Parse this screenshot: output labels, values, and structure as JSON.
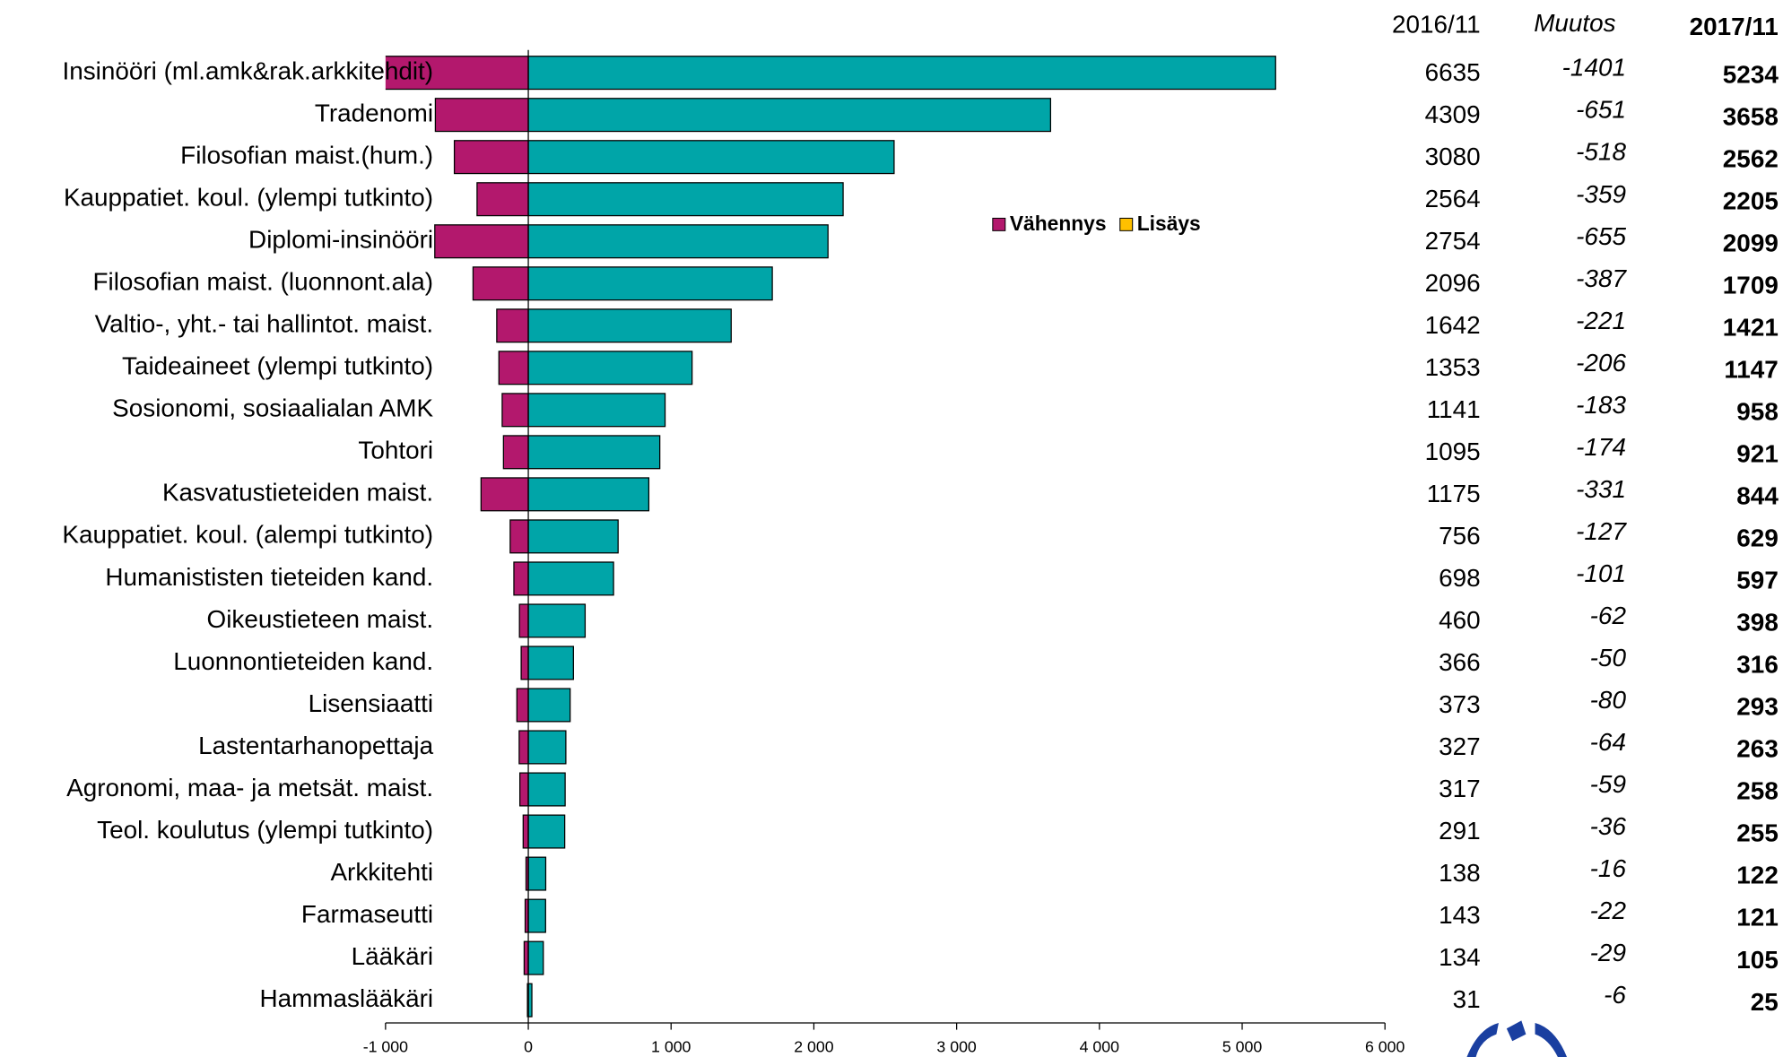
{
  "chart_data": {
    "type": "bar",
    "orientation": "horizontal",
    "categories": [
      "Insinööri (ml.amk&rak.arkkitehdit)",
      "Tradenomi",
      "Filosofian maist.(hum.)",
      "Kauppatiet. koul. (ylempi tutkinto)",
      "Diplomi-insinööri",
      "Filosofian maist. (luonnont.ala)",
      "Valtio-, yht.- tai hallintot. maist.",
      "Taideaineet (ylempi tutkinto)",
      "Sosionomi, sosiaalialan AMK",
      "Tohtori",
      "Kasvatustieteiden maist.",
      "Kauppatiet. koul. (alempi tutkinto)",
      "Humanististen tieteiden kand.",
      "Oikeustieteen maist.",
      "Luonnontieteiden kand.",
      "Lisensiaatti",
      "Lastentarhanopettaja",
      "Agronomi, maa- ja metsät. maist.",
      "Teol. koulutus (ylempi tutkinto)",
      "Arkkitehti",
      "Farmaseutti",
      "Lääkäri",
      "Hammaslääkäri"
    ],
    "columns": [
      {
        "header": "2016/11",
        "values": [
          6635,
          4309,
          3080,
          2564,
          2754,
          2096,
          1642,
          1353,
          1141,
          1095,
          1175,
          756,
          698,
          460,
          366,
          373,
          327,
          317,
          291,
          138,
          143,
          134,
          31
        ]
      },
      {
        "header": "Muutos",
        "values": [
          -1401,
          -651,
          -518,
          -359,
          -655,
          -387,
          -221,
          -206,
          -183,
          -174,
          -331,
          -127,
          -101,
          -62,
          -50,
          -80,
          -64,
          -59,
          -36,
          -16,
          -22,
          -29,
          -6
        ]
      },
      {
        "header": "2017/11",
        "values": [
          5234,
          3658,
          2562,
          2205,
          2099,
          1709,
          1421,
          1147,
          958,
          921,
          844,
          629,
          597,
          398,
          316,
          293,
          263,
          258,
          255,
          122,
          121,
          105,
          25
        ]
      }
    ],
    "decrease_color": "#b3186d",
    "total_color": "#00a5a8",
    "legend": [
      {
        "name": "Vähennys",
        "color": "#b3186d"
      },
      {
        "name": "Lisäys",
        "color": "#ffc000"
      }
    ],
    "xlim": [
      -1000,
      6000
    ],
    "xticks": [
      {
        "value": -1000,
        "label": "-1 000"
      },
      0,
      {
        "value": 1000,
        "label": "1 000"
      },
      {
        "value": 2000,
        "label": "2 000"
      },
      {
        "value": 3000,
        "label": "3 000"
      },
      {
        "value": 4000,
        "label": "4 000"
      },
      {
        "value": 5000,
        "label": "5 000"
      },
      {
        "value": 6000,
        "label": "6 000"
      }
    ]
  }
}
